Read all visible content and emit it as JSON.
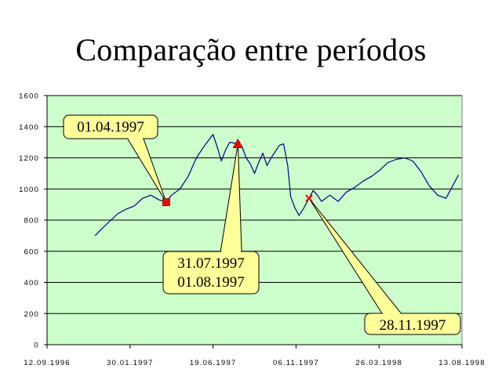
{
  "chart_data": {
    "type": "line",
    "title": "Comparação entre períodos",
    "xlabel": "",
    "ylabel": "",
    "ylim": [
      0,
      1600
    ],
    "yticks": [
      0,
      200,
      400,
      600,
      800,
      1000,
      1200,
      1400,
      1600
    ],
    "ytick_labels": [
      "0",
      "200",
      "400",
      "600",
      "800",
      "1000",
      "1200",
      "1400",
      "1600"
    ],
    "xlim": [
      "1996-09-12",
      "1998-08-13"
    ],
    "xtick_labels": [
      "12.09.1996",
      "30.01.1997",
      "19.06.1997",
      "06.11.1997",
      "26.03.1998",
      "13.08.1998"
    ],
    "grid": true,
    "plot_background": "#ccffcc",
    "line_color": "#000080",
    "series": [
      {
        "name": "",
        "points": [
          [
            "1996-12-02",
            700
          ],
          [
            "1996-12-12",
            740
          ],
          [
            "1996-12-26",
            790
          ],
          [
            "1997-01-09",
            840
          ],
          [
            "1997-01-23",
            870
          ],
          [
            "1997-02-06",
            890
          ],
          [
            "1997-02-20",
            940
          ],
          [
            "1997-03-06",
            960
          ],
          [
            "1997-03-20",
            930
          ],
          [
            "1997-04-01",
            915
          ],
          [
            "1997-04-10",
            960
          ],
          [
            "1997-04-24",
            1000
          ],
          [
            "1997-05-08",
            1080
          ],
          [
            "1997-05-22",
            1200
          ],
          [
            "1997-06-05",
            1280
          ],
          [
            "1997-06-19",
            1350
          ],
          [
            "1997-06-26",
            1270
          ],
          [
            "1997-07-03",
            1180
          ],
          [
            "1997-07-10",
            1250
          ],
          [
            "1997-07-17",
            1300
          ],
          [
            "1997-07-31",
            1290
          ],
          [
            "1997-08-07",
            1270
          ],
          [
            "1997-08-14",
            1200
          ],
          [
            "1997-08-21",
            1160
          ],
          [
            "1997-08-28",
            1100
          ],
          [
            "1997-09-04",
            1170
          ],
          [
            "1997-09-11",
            1230
          ],
          [
            "1997-09-18",
            1150
          ],
          [
            "1997-09-25",
            1200
          ],
          [
            "1997-10-02",
            1240
          ],
          [
            "1997-10-09",
            1280
          ],
          [
            "1997-10-16",
            1290
          ],
          [
            "1997-10-23",
            1150
          ],
          [
            "1997-10-28",
            950
          ],
          [
            "1997-11-04",
            880
          ],
          [
            "1997-11-11",
            830
          ],
          [
            "1997-11-18",
            870
          ],
          [
            "1997-11-28",
            940
          ],
          [
            "1997-12-05",
            990
          ],
          [
            "1997-12-12",
            960
          ],
          [
            "1997-12-19",
            920
          ],
          [
            "1998-01-02",
            960
          ],
          [
            "1998-01-16",
            920
          ],
          [
            "1998-01-30",
            980
          ],
          [
            "1998-02-13",
            1010
          ],
          [
            "1998-02-27",
            1050
          ],
          [
            "1998-03-13",
            1080
          ],
          [
            "1998-03-27",
            1120
          ],
          [
            "1998-04-10",
            1170
          ],
          [
            "1998-04-24",
            1190
          ],
          [
            "1998-05-08",
            1200
          ],
          [
            "1998-05-22",
            1180
          ],
          [
            "1998-06-05",
            1110
          ],
          [
            "1998-06-19",
            1020
          ],
          [
            "1998-07-03",
            960
          ],
          [
            "1998-07-17",
            940
          ],
          [
            "1998-07-31",
            1040
          ],
          [
            "1998-08-07",
            1090
          ]
        ]
      }
    ],
    "markers": [
      {
        "label": "01.04.1997",
        "date": "1997-04-01",
        "value": 915,
        "shape": "square",
        "color": "#ff0000"
      },
      {
        "label": "31.07.1997\n01.08.1997",
        "date": "1997-07-31",
        "value": 1290,
        "shape": "triangle",
        "color": "#ff0000"
      },
      {
        "label": "28.11.1997",
        "date": "1997-11-28",
        "value": 940,
        "shape": "x",
        "color": "#ff0000"
      }
    ],
    "callouts": [
      {
        "lines": [
          "01.04.1997"
        ],
        "marker_date": "1997-04-01",
        "marker_value": 915
      },
      {
        "lines": [
          "31.07.1997",
          "01.08.1997"
        ],
        "marker_date": "1997-07-31",
        "marker_value": 1290
      },
      {
        "lines": [
          "28.11.1997"
        ],
        "marker_date": "1997-11-28",
        "marker_value": 940
      }
    ]
  }
}
